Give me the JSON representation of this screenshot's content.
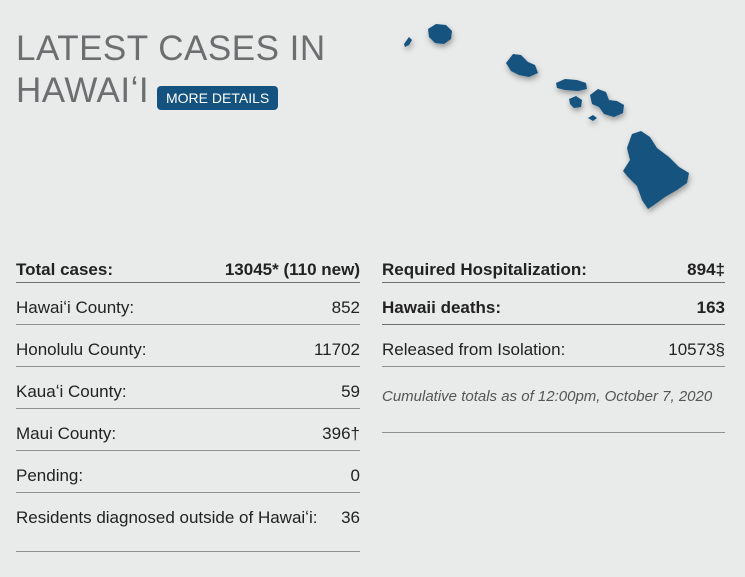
{
  "header": {
    "title_line1": "LATEST CASES IN",
    "title_line2": "HAWAIʻI",
    "more_details_label": "MORE DETAILS"
  },
  "colors": {
    "background": "#e9eaea",
    "island_blue": "#14527f",
    "title_gray": "#6d6e70"
  },
  "map": {
    "icon": "hawaii-islands-map"
  },
  "left_table": [
    {
      "label": "Total cases:",
      "value": "13045* (110 new)"
    },
    {
      "label": "Hawaiʻi County:",
      "value": "852"
    },
    {
      "label": "Honolulu County:",
      "value": "11702"
    },
    {
      "label": "Kauaʻi County:",
      "value": "59"
    },
    {
      "label": "Maui County:",
      "value": "396†"
    },
    {
      "label": "Pending:",
      "value": "0"
    },
    {
      "label": "Residents diagnosed outside of Hawaiʻi:",
      "value": "36"
    }
  ],
  "right_table": [
    {
      "label": "Required Hospitalization:",
      "value": "894‡"
    },
    {
      "label": "Hawaii deaths:",
      "value": "163"
    },
    {
      "label": "Released from Isolation:",
      "value": "10573§"
    }
  ],
  "note": "Cumulative totals as of 12:00pm, October 7, 2020"
}
